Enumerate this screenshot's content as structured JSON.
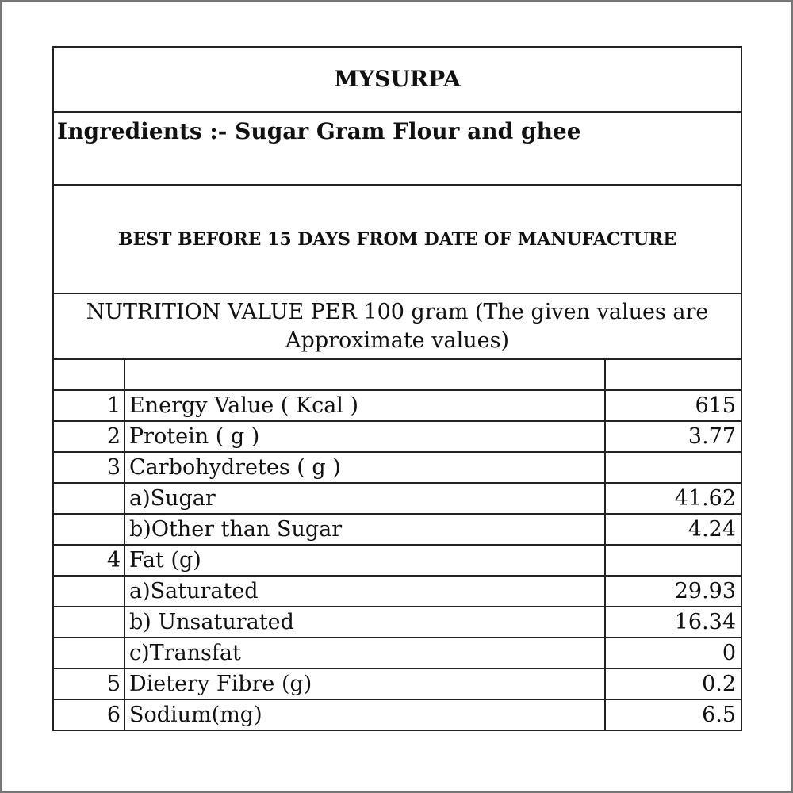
{
  "title": "MYSURPA",
  "ingredients": "Ingredients :- Sugar Gram Flour and ghee",
  "best_before": "BEST BEFORE 15 DAYS FROM DATE OF MANUFACTURE",
  "nutrition_header": "NUTRITION VALUE PER 100 gram (The given values are Approximate values)",
  "rows": [
    {
      "num": "1",
      "label": "Energy Value ( Kcal )",
      "value": "615"
    },
    {
      "num": "2",
      "label": "Protein ( g )",
      "value": "3.77"
    },
    {
      "num": "3",
      "label": "Carbohydretes ( g )",
      "value": ""
    },
    {
      "num": "",
      "label": "a)Sugar",
      "value": "41.62"
    },
    {
      "num": "",
      "label": "b)Other than Sugar",
      "value": "4.24"
    },
    {
      "num": "4",
      "label": "Fat (g)",
      "value": ""
    },
    {
      "num": "",
      "label": "a)Saturated",
      "value": "29.93"
    },
    {
      "num": "",
      "label": "b) Unsaturated",
      "value": "16.34"
    },
    {
      "num": "",
      "label": "c)Transfat",
      "value": "0"
    },
    {
      "num": "5",
      "label": "Dietery Fibre (g)",
      "value": "0.2"
    },
    {
      "num": "6",
      "label": "Sodium(mg)",
      "value": "6.5"
    }
  ]
}
